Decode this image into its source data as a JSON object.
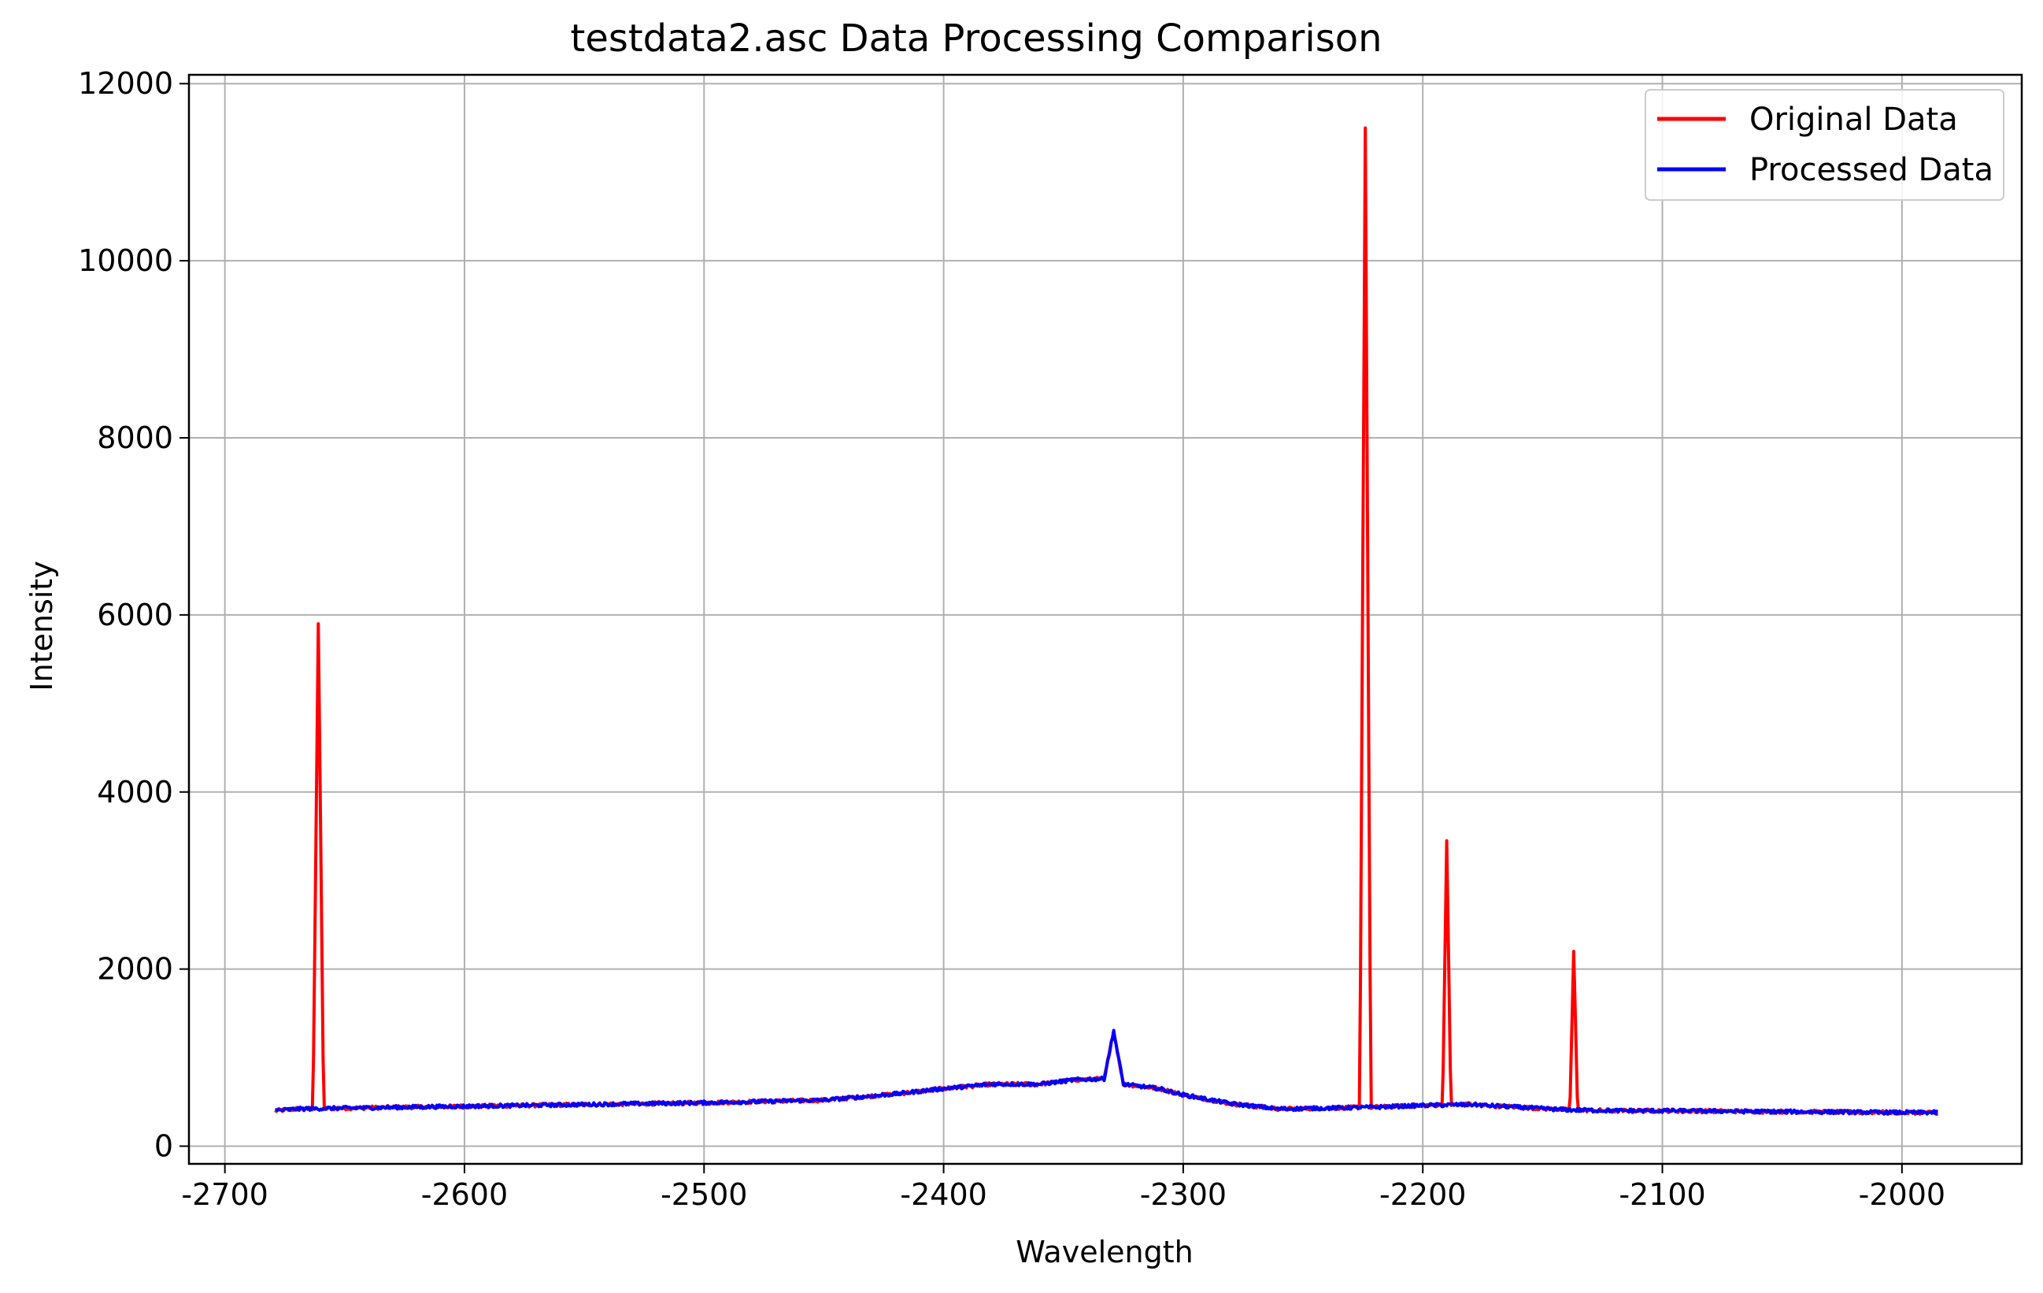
{
  "chart_data": {
    "type": "line",
    "title": "testdata2.asc Data Processing Comparison",
    "xlabel": "Wavelength",
    "ylabel": "Intensity",
    "xlim": [
      -2715,
      -1950
    ],
    "ylim": [
      -200,
      12100
    ],
    "xticks": [
      -2700,
      -2600,
      -2500,
      -2400,
      -2300,
      -2200,
      -2100,
      -2000
    ],
    "yticks": [
      0,
      2000,
      4000,
      6000,
      8000,
      10000,
      12000
    ],
    "grid": true,
    "legend_position": "top-right",
    "series": [
      {
        "name": "Original Data",
        "color": "#ff0000",
        "baseline": [
          [
            -2679,
            400
          ],
          [
            -2670,
            420
          ],
          [
            -2650,
            430
          ],
          [
            -2600,
            450
          ],
          [
            -2550,
            470
          ],
          [
            -2500,
            490
          ],
          [
            -2450,
            520
          ],
          [
            -2420,
            590
          ],
          [
            -2400,
            650
          ],
          [
            -2380,
            700
          ],
          [
            -2360,
            700
          ],
          [
            -2345,
            750
          ],
          [
            -2333,
            760
          ],
          [
            -2329,
            1300
          ],
          [
            -2325,
            700
          ],
          [
            -2310,
            650
          ],
          [
            -2300,
            580
          ],
          [
            -2280,
            480
          ],
          [
            -2260,
            420
          ],
          [
            -2240,
            430
          ],
          [
            -2220,
            440
          ],
          [
            -2200,
            460
          ],
          [
            -2180,
            470
          ],
          [
            -2160,
            440
          ],
          [
            -2140,
            410
          ],
          [
            -2120,
            400
          ],
          [
            -2100,
            400
          ],
          [
            -2050,
            390
          ],
          [
            -2000,
            380
          ],
          [
            -1985,
            380
          ]
        ],
        "spikes": [
          {
            "x": -2661,
            "peak": 5900,
            "halfwidth": 1.2
          },
          {
            "x": -2224,
            "peak": 11500,
            "halfwidth": 1.2
          },
          {
            "x": -2190,
            "peak": 3450,
            "halfwidth": 1.0
          },
          {
            "x": -2137,
            "peak": 2200,
            "halfwidth": 1.0
          }
        ]
      },
      {
        "name": "Processed Data",
        "color": "#0000ff",
        "baseline": [
          [
            -2679,
            400
          ],
          [
            -2670,
            420
          ],
          [
            -2650,
            430
          ],
          [
            -2600,
            450
          ],
          [
            -2550,
            470
          ],
          [
            -2500,
            490
          ],
          [
            -2450,
            520
          ],
          [
            -2420,
            590
          ],
          [
            -2400,
            650
          ],
          [
            -2380,
            700
          ],
          [
            -2360,
            700
          ],
          [
            -2345,
            750
          ],
          [
            -2333,
            760
          ],
          [
            -2329,
            1300
          ],
          [
            -2325,
            700
          ],
          [
            -2310,
            650
          ],
          [
            -2300,
            580
          ],
          [
            -2280,
            480
          ],
          [
            -2260,
            420
          ],
          [
            -2240,
            430
          ],
          [
            -2220,
            440
          ],
          [
            -2200,
            460
          ],
          [
            -2180,
            470
          ],
          [
            -2160,
            440
          ],
          [
            -2140,
            410
          ],
          [
            -2120,
            400
          ],
          [
            -2100,
            400
          ],
          [
            -2050,
            390
          ],
          [
            -2000,
            380
          ],
          [
            -1985,
            380
          ]
        ],
        "spikes": []
      }
    ]
  }
}
